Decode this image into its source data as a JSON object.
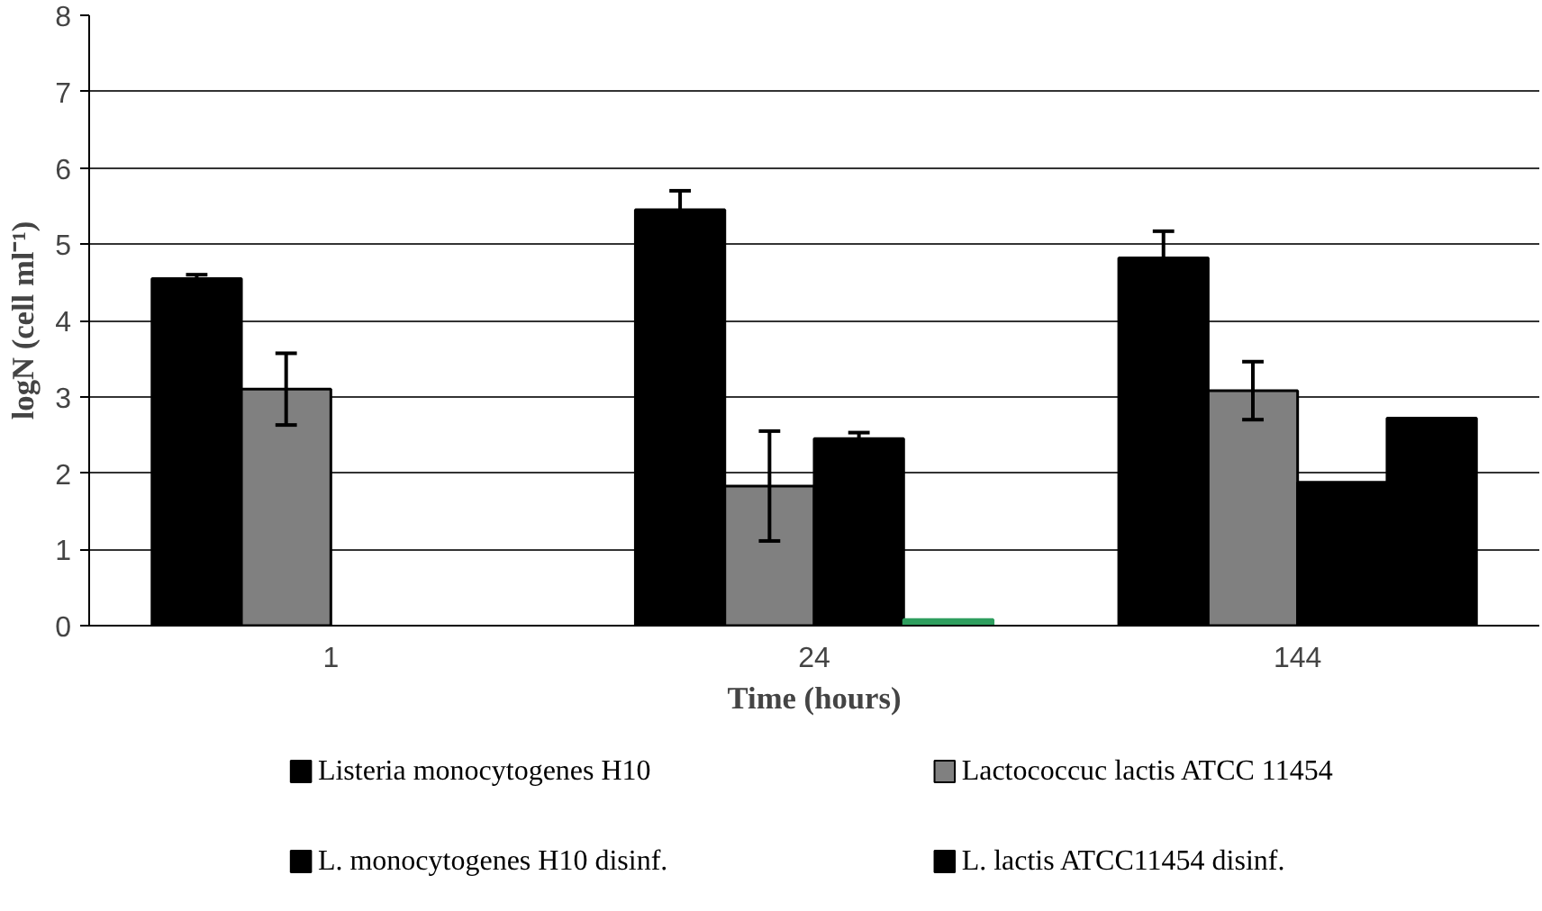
{
  "chart_data": {
    "type": "bar",
    "xlabel": "Time (hours)",
    "ylabel": "logN (cell ml⁻¹)",
    "categories": [
      "1",
      "24",
      "144"
    ],
    "series": [
      {
        "name": "Listeria monocytogenes H10",
        "color": "#000000",
        "values": [
          4.55,
          5.45,
          4.82
        ],
        "errors": [
          0.05,
          0.25,
          0.35
        ]
      },
      {
        "name": "Lactococcuc lactis ATCC 11454",
        "color": "#808080",
        "values": [
          3.1,
          1.83,
          3.08
        ],
        "errors": [
          0.47,
          0.72,
          0.38
        ]
      },
      {
        "name": "L. monocytogenes H10 disinf.",
        "color": "#000000",
        "values": [
          null,
          2.45,
          1.88
        ],
        "errors": [
          null,
          0.08,
          null
        ]
      },
      {
        "name": "L. lactis ATCC11454 disinf.",
        "color": "#000000",
        "colors": [
          "#000000",
          "#2e9e5e",
          "#000000"
        ],
        "values": [
          null,
          0.08,
          2.72
        ]
      }
    ],
    "ylim": [
      0,
      8
    ],
    "yticks": [
      0,
      1,
      2,
      3,
      4,
      5,
      6,
      7,
      8
    ],
    "grid": "y",
    "legend": "bottom"
  }
}
